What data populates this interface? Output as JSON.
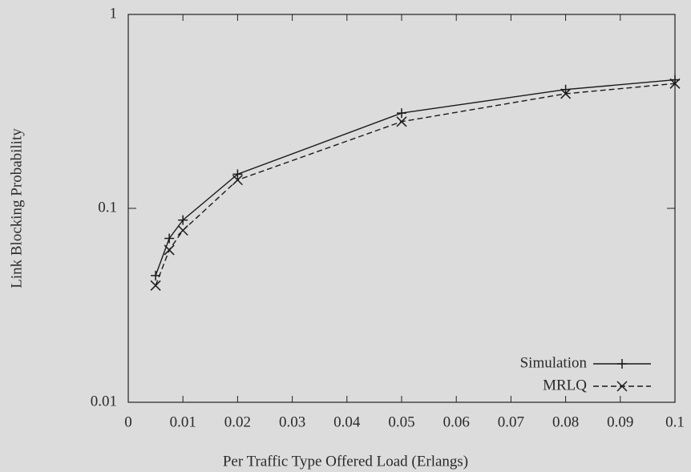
{
  "chart_data": {
    "type": "line",
    "x_label": "Per Traffic Type Offered Load (Erlangs)",
    "y_label": "Link Blocking Probability",
    "xlim": [
      0,
      0.1
    ],
    "xticks": [
      0,
      0.01,
      0.02,
      0.03,
      0.04,
      0.05,
      0.06,
      0.07,
      0.08,
      0.09,
      0.1
    ],
    "ylim": [
      0.01,
      1
    ],
    "yticks": [
      0.01,
      0.1,
      1
    ],
    "log_y": true,
    "legend": "lower right",
    "series": [
      {
        "name": "Simulation",
        "color": "#1a1a1a",
        "dash": "solid",
        "marker": "plus",
        "x": [
          0.005,
          0.0075,
          0.01,
          0.02,
          0.05,
          0.08,
          0.1
        ],
        "values": [
          0.045,
          0.07,
          0.087,
          0.15,
          0.31,
          0.41,
          0.46
        ]
      },
      {
        "name": "MRLQ",
        "color": "#1a1a1a",
        "dash": "dashed",
        "marker": "cross",
        "x": [
          0.005,
          0.0075,
          0.01,
          0.02,
          0.05,
          0.08,
          0.1
        ],
        "values": [
          0.04,
          0.061,
          0.077,
          0.14,
          0.28,
          0.39,
          0.44
        ]
      }
    ]
  }
}
